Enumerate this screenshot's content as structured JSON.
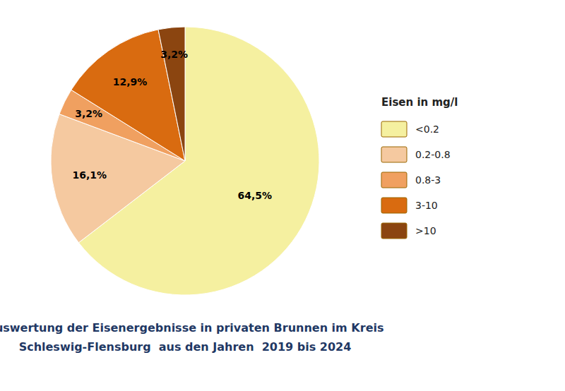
{
  "chart_data": {
    "type": "pie",
    "title": "Auswertung der Eisenergebnisse in privaten Brunnen im Kreis",
    "subtitle": "Schleswig-Flensburg  aus den Jahren  2019 bis 2024",
    "categories": [
      "<0.2",
      "0.2-0.8",
      "0.8-3",
      "3-10",
      ">10"
    ],
    "values": [
      64.5,
      16.1,
      3.2,
      12.9,
      3.2
    ],
    "value_labels": [
      "64,5%",
      "16,1%",
      "3,2%",
      "12,9%",
      "3,2%"
    ],
    "colors": [
      "#F5F0A0",
      "#F5C9A0",
      "#F0A060",
      "#D96B10",
      "#8B4510"
    ],
    "data_labels": true,
    "legend": "right",
    "legend_title": "Eisen in mg/l"
  }
}
